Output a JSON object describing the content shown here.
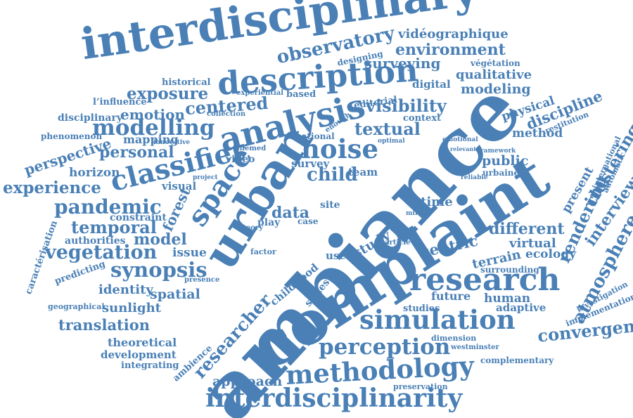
{
  "accent_color": "#4a80b6",
  "words": [
    "interdisciplinary",
    "vidéographique",
    "observatory",
    "environment",
    "designing",
    "description",
    "surveying",
    "végétation",
    "historical",
    "qualitative",
    "exposure",
    "experiential",
    "based",
    "digital",
    "modeling",
    "l’influence",
    "centered",
    "collection",
    "editorial",
    "visibility",
    "physical",
    "discipline",
    "restitution",
    "emotion",
    "context",
    "disciplinary",
    "enough",
    "modelling",
    "analysis",
    "textual",
    "method",
    "phenomenon",
    "mapping",
    "innovative",
    "national",
    "optimal",
    "emotional",
    "relevant",
    "framework",
    "perspective",
    "personal",
    "noise",
    "classifier",
    "themed",
    "survey",
    "public",
    "clustering",
    "international",
    "automatic",
    "child",
    "horizon",
    "video",
    "team",
    "urbaines",
    "experience",
    "visual",
    "project",
    "reliable",
    "present",
    "pandemic",
    "space",
    "forest",
    "time",
    "interview",
    "constraint",
    "data",
    "site",
    "milano",
    "rendering",
    "temporal",
    "different",
    "theory",
    "play",
    "case",
    "ecology",
    "model",
    "virtual",
    "atmosphere",
    "authorities",
    "centric",
    "terrain",
    "vegetation",
    "issue",
    "user",
    "caractérisation",
    "factor",
    "article",
    "surrounding",
    "synopsis",
    "study",
    "predicting",
    "research",
    "presence",
    "identity",
    "spatial",
    "childhood",
    "future",
    "investigation",
    "geographical",
    "sunlight",
    "human",
    "implementation",
    "series",
    "adaptive",
    "studies",
    "translation",
    "simulation",
    "convergence",
    "theoretical",
    "dimension",
    "westminster",
    "development",
    "perception",
    "researcher",
    "integrating",
    "ambience",
    "complementary",
    "methodology",
    "approach",
    "preservation",
    "interdisciplinarity",
    "urban",
    "ambiance",
    "complaint"
  ]
}
